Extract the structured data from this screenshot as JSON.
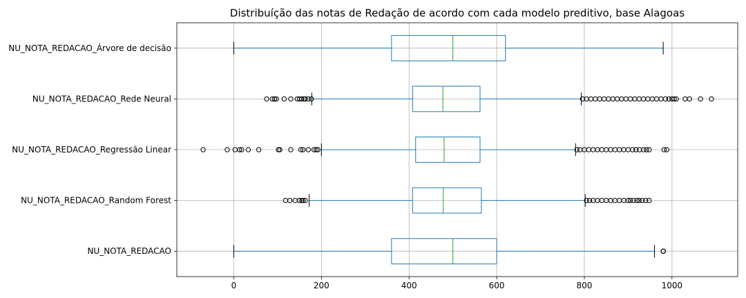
{
  "chart_data": {
    "type": "boxplot",
    "title": "Distribuíção das notas de Redação de acordo com cada modelo preditivo, base Alagoas",
    "xlabel": "",
    "ylabel": "",
    "xlim": [
      -130,
      1150
    ],
    "xticks": [
      0,
      200,
      400,
      600,
      800,
      1000
    ],
    "grid": true,
    "orientation": "horizontal",
    "colors": {
      "box": "#1f77b4",
      "median": "#2ca02c",
      "whisker": "#1f77b4",
      "flier": "#000000",
      "grid": "#b0b0b0"
    },
    "series": [
      {
        "name": "NU_NOTA_REDACAO",
        "whisker_low": 0,
        "q1": 360,
        "median": 500,
        "q3": 600,
        "whisker_high": 960,
        "fliers": [
          980,
          980,
          980
        ]
      },
      {
        "name": "NU_NOTA_REDACAO_Random Forest",
        "whisker_low": 172,
        "q1": 408,
        "median": 478,
        "q3": 565,
        "whisker_high": 802,
        "fliers": [
          118,
          128,
          140,
          150,
          155,
          158,
          163,
          805,
          812,
          820,
          830,
          840,
          850,
          860,
          870,
          880,
          890,
          900,
          905,
          912,
          920,
          925,
          932,
          940,
          948
        ]
      },
      {
        "name": "NU_NOTA_REDACAO_Regressão Linear",
        "whisker_low": 200,
        "q1": 415,
        "median": 480,
        "q3": 562,
        "whisker_high": 780,
        "fliers": [
          -70,
          -15,
          3,
          13,
          18,
          33,
          57,
          102,
          105,
          130,
          153,
          158,
          170,
          183,
          188,
          192,
          783,
          790,
          800,
          810,
          820,
          830,
          840,
          850,
          860,
          870,
          880,
          890,
          900,
          910,
          918,
          926,
          935,
          942,
          948,
          982,
          988
        ]
      },
      {
        "name": "NU_NOTA_REDACAO_Rede Neural",
        "whisker_low": 178,
        "q1": 408,
        "median": 477,
        "q3": 562,
        "whisker_high": 793,
        "fliers": [
          75,
          88,
          93,
          97,
          115,
          130,
          145,
          150,
          155,
          160,
          163,
          170,
          177,
          796,
          805,
          815,
          825,
          835,
          845,
          855,
          865,
          875,
          885,
          895,
          905,
          915,
          925,
          935,
          945,
          955,
          965,
          975,
          985,
          993,
          1000,
          1005,
          1010,
          1030,
          1040,
          1065,
          1090
        ]
      },
      {
        "name": "NU_NOTA_REDACAO_Árvore de decisão",
        "whisker_low": 0,
        "q1": 360,
        "median": 500,
        "q3": 620,
        "whisker_high": 980,
        "fliers": []
      }
    ]
  }
}
